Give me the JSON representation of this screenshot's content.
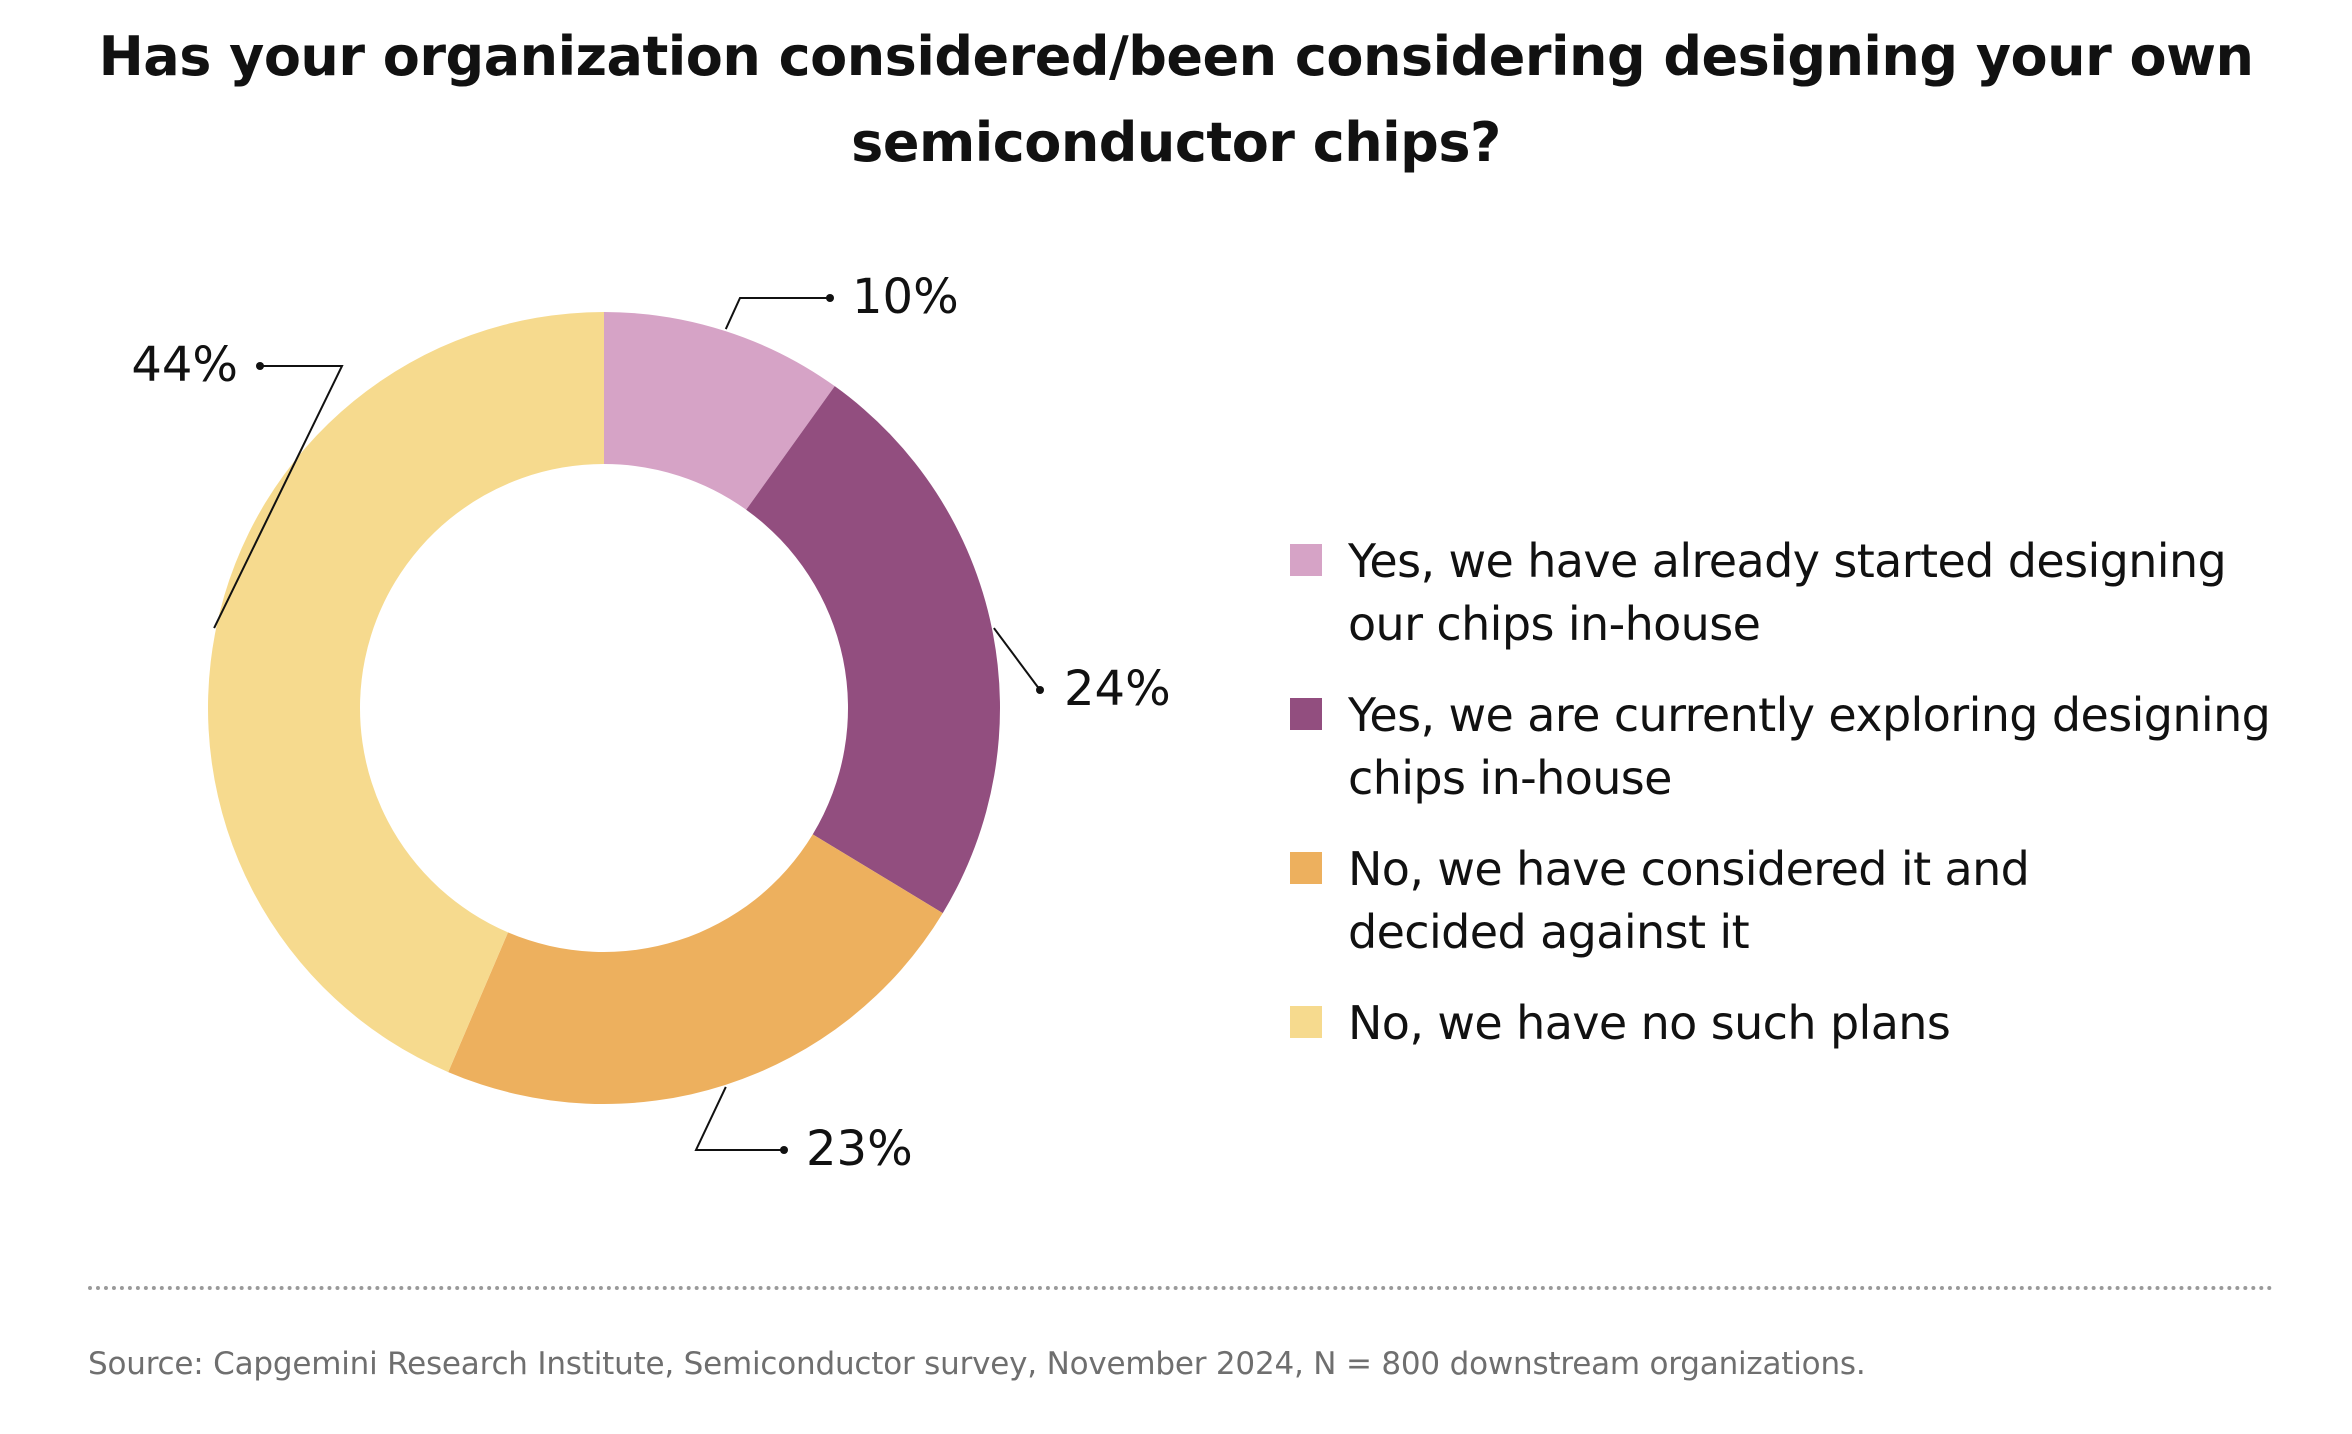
{
  "title_lines": [
    "Has your organization considered/been considering designing your own",
    "semiconductor chips?"
  ],
  "chart_data": {
    "type": "pie",
    "donut": true,
    "title": "Has your organization considered/been considering designing your own semiconductor chips?",
    "categories": [
      "Yes, we have already started designing our chips in-house",
      "Yes, we are currently exploring designing chips in-house",
      "No, we have considered it and decided against it",
      "No, we have no such plans"
    ],
    "values": [
      10,
      24,
      23,
      44
    ],
    "data_labels": [
      "10%",
      "24%",
      "23%",
      "44%"
    ],
    "colors": [
      "#d6a3c6",
      "#924e7f",
      "#edb05e",
      "#f6da8e"
    ],
    "legend_position": "right"
  },
  "legend": [
    {
      "lines": [
        "Yes, we have already started designing",
        "our chips in-house"
      ],
      "color": "#d6a3c6"
    },
    {
      "lines": [
        "Yes, we are currently exploring designing",
        "chips in-house"
      ],
      "color": "#924e7f"
    },
    {
      "lines": [
        "No, we have considered it and",
        "decided against it"
      ],
      "color": "#edb05e"
    },
    {
      "lines": [
        "No, we have no such plans"
      ],
      "color": "#f6da8e"
    }
  ],
  "source": "Source: Capgemini Research Institute, Semiconductor survey, November 2024, N = 800 downstream organizations."
}
